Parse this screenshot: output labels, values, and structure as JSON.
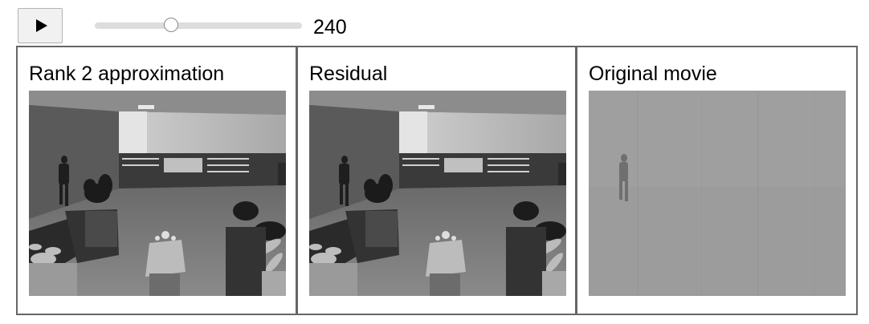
{
  "controls": {
    "play_icon": "play-icon",
    "slider_value": 240,
    "slider_fraction": 0.37,
    "frame_label": "240"
  },
  "panels": [
    {
      "title": "Rank 2 approximation",
      "content": "lobby-scene"
    },
    {
      "title": "Residual",
      "content": "lobby-scene"
    },
    {
      "title": "Original movie",
      "content": "foreground-residual"
    }
  ]
}
